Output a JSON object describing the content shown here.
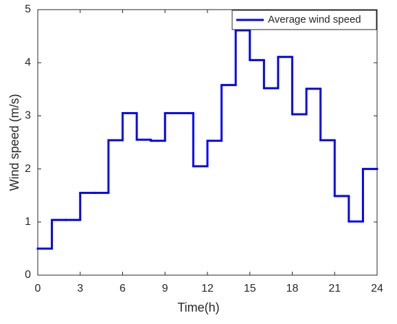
{
  "chart_data": {
    "type": "stairs",
    "xlabel": "Time(h)",
    "ylabel": "Wind speed (m/s)",
    "x": [
      0,
      1,
      2,
      3,
      4,
      5,
      6,
      7,
      8,
      9,
      10,
      11,
      12,
      13,
      14,
      15,
      16,
      17,
      18,
      19,
      20,
      21,
      22,
      23
    ],
    "series": [
      {
        "name": "Average wind speed",
        "color": "#0000ff",
        "values": [
          0.5,
          1.04,
          1.04,
          1.55,
          1.55,
          2.54,
          3.05,
          2.55,
          2.53,
          3.05,
          3.05,
          2.05,
          2.53,
          3.58,
          4.61,
          4.05,
          3.52,
          4.11,
          3.03,
          3.51,
          2.54,
          1.49,
          1.01,
          2.0
        ]
      }
    ],
    "xlim": [
      0,
      24
    ],
    "xticks": [
      0,
      3,
      6,
      9,
      12,
      15,
      18,
      21,
      24
    ],
    "ylim": [
      0,
      5
    ],
    "yticks": [
      0,
      1,
      2,
      3,
      4,
      5
    ],
    "grid": false,
    "legend": "northeast"
  }
}
